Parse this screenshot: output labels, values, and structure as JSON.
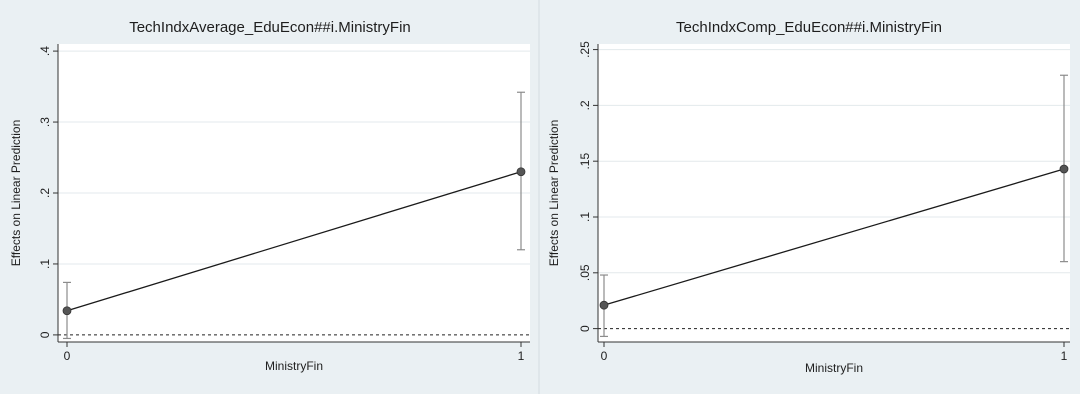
{
  "chart_data": [
    {
      "type": "line",
      "title": "TechIndxAverage_EduEcon##i.MinistryFin",
      "xlabel": "MinistryFin",
      "ylabel": "Effects on Linear Prediction",
      "x": [
        0,
        1
      ],
      "x_ticks": [
        "0",
        "1"
      ],
      "ylim": [
        -0.01,
        0.41
      ],
      "y_ticks": [
        0,
        0.1,
        0.2,
        0.3,
        0.4
      ],
      "y_tick_labels": [
        "0",
        ".1",
        ".2",
        ".3",
        ".4"
      ],
      "series": [
        {
          "values": [
            0.034,
            0.23
          ],
          "ci_low": [
            -0.005,
            0.12
          ],
          "ci_high": [
            0.074,
            0.342
          ]
        }
      ],
      "reference_line": 0,
      "grid": true
    },
    {
      "type": "line",
      "title": "TechIndxComp_EduEcon##i.MinistryFin",
      "xlabel": "MinistryFin",
      "ylabel": "Effects on Linear Prediction",
      "x": [
        0,
        1
      ],
      "x_ticks": [
        "0",
        "1"
      ],
      "ylim": [
        -0.012,
        0.255
      ],
      "y_ticks": [
        0,
        0.05,
        0.1,
        0.15,
        0.2,
        0.25
      ],
      "y_tick_labels": [
        "0",
        ".05",
        ".1",
        ".15",
        ".2",
        ".25"
      ],
      "series": [
        {
          "values": [
            0.021,
            0.143
          ],
          "ci_low": [
            -0.007,
            0.06
          ],
          "ci_high": [
            0.048,
            0.227
          ]
        }
      ],
      "reference_line": 0,
      "grid": true
    }
  ],
  "colors": {
    "background": "#eaf0f3",
    "plot_area": "#ffffff",
    "grid": "#e3e9ec",
    "line": "#1a1a1a",
    "marker": "#555555",
    "ci": "#8c8c8c"
  }
}
